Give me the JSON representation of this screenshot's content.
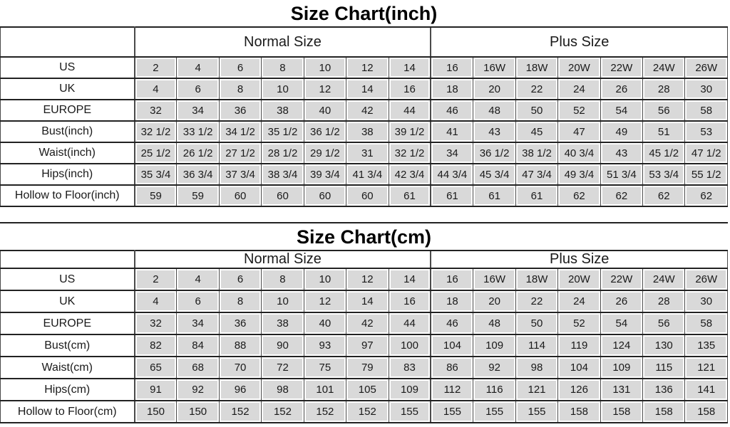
{
  "colors": {
    "cell_fill": "#d9d9d9",
    "grid_line": "#4a4a4a",
    "heavy_line": "#222222",
    "text": "#1a1a1a",
    "background": "#ffffff"
  },
  "chart_data": [
    {
      "type": "table",
      "title": "Size Chart(inch)",
      "column_groups": [
        {
          "label": "",
          "span": 1
        },
        {
          "label": "Normal Size",
          "span": 7
        },
        {
          "label": "Plus Size",
          "span": 7
        }
      ],
      "rows": [
        {
          "label": "US",
          "values": [
            "2",
            "4",
            "6",
            "8",
            "10",
            "12",
            "14",
            "16",
            "16W",
            "18W",
            "20W",
            "22W",
            "24W",
            "26W"
          ]
        },
        {
          "label": "UK",
          "values": [
            "4",
            "6",
            "8",
            "10",
            "12",
            "14",
            "16",
            "18",
            "20",
            "22",
            "24",
            "26",
            "28",
            "30"
          ]
        },
        {
          "label": "EUROPE",
          "values": [
            "32",
            "34",
            "36",
            "38",
            "40",
            "42",
            "44",
            "46",
            "48",
            "50",
            "52",
            "54",
            "56",
            "58"
          ]
        },
        {
          "label": "Bust(inch)",
          "values": [
            "32 1/2",
            "33 1/2",
            "34 1/2",
            "35 1/2",
            "36 1/2",
            "38",
            "39 1/2",
            "41",
            "43",
            "45",
            "47",
            "49",
            "51",
            "53"
          ]
        },
        {
          "label": "Waist(inch)",
          "values": [
            "25 1/2",
            "26 1/2",
            "27 1/2",
            "28 1/2",
            "29 1/2",
            "31",
            "32 1/2",
            "34",
            "36 1/2",
            "38 1/2",
            "40 3/4",
            "43",
            "45 1/2",
            "47 1/2"
          ]
        },
        {
          "label": "Hips(inch)",
          "values": [
            "35 3/4",
            "36 3/4",
            "37 3/4",
            "38 3/4",
            "39 3/4",
            "41 3/4",
            "42 3/4",
            "44 3/4",
            "45 3/4",
            "47 3/4",
            "49 3/4",
            "51 3/4",
            "53 3/4",
            "55 1/2"
          ]
        },
        {
          "label": "Hollow to Floor(inch)",
          "values": [
            "59",
            "59",
            "60",
            "60",
            "60",
            "60",
            "61",
            "61",
            "61",
            "61",
            "62",
            "62",
            "62",
            "62"
          ]
        }
      ]
    },
    {
      "type": "table",
      "title": "Size Chart(cm)",
      "column_groups": [
        {
          "label": "",
          "span": 1
        },
        {
          "label": "Normal Size",
          "span": 7
        },
        {
          "label": "Plus Size",
          "span": 7
        }
      ],
      "rows": [
        {
          "label": "US",
          "values": [
            "2",
            "4",
            "6",
            "8",
            "10",
            "12",
            "14",
            "16",
            "16W",
            "18W",
            "20W",
            "22W",
            "24W",
            "26W"
          ]
        },
        {
          "label": "UK",
          "values": [
            "4",
            "6",
            "8",
            "10",
            "12",
            "14",
            "16",
            "18",
            "20",
            "22",
            "24",
            "26",
            "28",
            "30"
          ]
        },
        {
          "label": "EUROPE",
          "values": [
            "32",
            "34",
            "36",
            "38",
            "40",
            "42",
            "44",
            "46",
            "48",
            "50",
            "52",
            "54",
            "56",
            "58"
          ]
        },
        {
          "label": "Bust(cm)",
          "values": [
            "82",
            "84",
            "88",
            "90",
            "93",
            "97",
            "100",
            "104",
            "109",
            "114",
            "119",
            "124",
            "130",
            "135"
          ]
        },
        {
          "label": "Waist(cm)",
          "values": [
            "65",
            "68",
            "70",
            "72",
            "75",
            "79",
            "83",
            "86",
            "92",
            "98",
            "104",
            "109",
            "115",
            "121"
          ]
        },
        {
          "label": "Hips(cm)",
          "values": [
            "91",
            "92",
            "96",
            "98",
            "101",
            "105",
            "109",
            "112",
            "116",
            "121",
            "126",
            "131",
            "136",
            "141"
          ]
        },
        {
          "label": "Hollow to Floor(cm)",
          "values": [
            "150",
            "150",
            "152",
            "152",
            "152",
            "152",
            "155",
            "155",
            "155",
            "155",
            "158",
            "158",
            "158",
            "158"
          ]
        }
      ]
    }
  ]
}
